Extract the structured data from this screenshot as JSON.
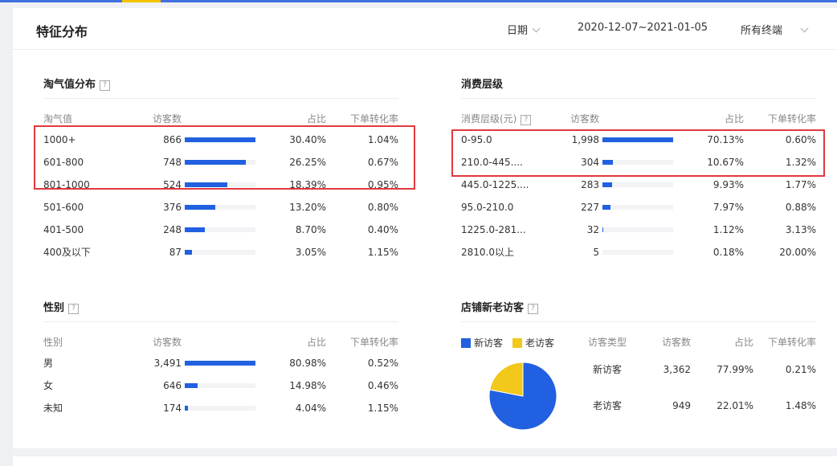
{
  "header": {
    "title": "特征分布",
    "date_filter": "日期",
    "date_range": "2020-12-07~2021-01-05",
    "terminal_filter": "所有终端"
  },
  "help_mark": "?",
  "taoqi": {
    "title": "淘气值分布",
    "columns": [
      "淘气值",
      "访客数",
      "占比",
      "下单转化率"
    ],
    "rows": [
      {
        "label": "1000+",
        "visitors": "866",
        "share": "30.40%",
        "conversion": "1.04%",
        "fill": 1.0
      },
      {
        "label": "601-800",
        "visitors": "748",
        "share": "26.25%",
        "conversion": "0.67%",
        "fill": 0.864
      },
      {
        "label": "801-1000",
        "visitors": "524",
        "share": "18.39%",
        "conversion": "0.95%",
        "fill": 0.605
      },
      {
        "label": "501-600",
        "visitors": "376",
        "share": "13.20%",
        "conversion": "0.80%",
        "fill": 0.434
      },
      {
        "label": "401-500",
        "visitors": "248",
        "share": "8.70%",
        "conversion": "0.40%",
        "fill": 0.286
      },
      {
        "label": "400及以下",
        "visitors": "87",
        "share": "3.05%",
        "conversion": "1.15%",
        "fill": 0.1
      }
    ]
  },
  "consumption": {
    "title": "消费层级",
    "columns": [
      "消费层级(元)",
      "访客数",
      "占比",
      "下单转化率"
    ],
    "rows": [
      {
        "label": "0-95.0",
        "visitors": "1,998",
        "share": "70.13%",
        "conversion": "0.60%",
        "fill": 1.0
      },
      {
        "label": "210.0-445....",
        "visitors": "304",
        "share": "10.67%",
        "conversion": "1.32%",
        "fill": 0.152
      },
      {
        "label": "445.0-1225....",
        "visitors": "283",
        "share": "9.93%",
        "conversion": "1.77%",
        "fill": 0.142
      },
      {
        "label": "95.0-210.0",
        "visitors": "227",
        "share": "7.97%",
        "conversion": "0.88%",
        "fill": 0.114
      },
      {
        "label": "1225.0-281...",
        "visitors": "32",
        "share": "1.12%",
        "conversion": "3.13%",
        "fill": 0.016
      },
      {
        "label": "2810.0以上",
        "visitors": "5",
        "share": "0.18%",
        "conversion": "20.00%",
        "fill": 0.0
      }
    ]
  },
  "gender": {
    "title": "性别",
    "columns": [
      "性别",
      "访客数",
      "占比",
      "下单转化率"
    ],
    "rows": [
      {
        "label": "男",
        "visitors": "3,491",
        "share": "80.98%",
        "conversion": "0.52%",
        "fill": 1.0
      },
      {
        "label": "女",
        "visitors": "646",
        "share": "14.98%",
        "conversion": "0.46%",
        "fill": 0.185
      },
      {
        "label": "未知",
        "visitors": "174",
        "share": "4.04%",
        "conversion": "1.15%",
        "fill": 0.05
      }
    ]
  },
  "visitors": {
    "title": "店铺新老访客",
    "legend": [
      {
        "label": "新访客",
        "color": "#2160e0"
      },
      {
        "label": "老访客",
        "color": "#f2c81b"
      }
    ],
    "columns": [
      "访客类型",
      "访客数",
      "占比",
      "下单转化率"
    ],
    "rows": [
      {
        "label": "新访客",
        "visitors": "3,362",
        "share": "77.99%",
        "conversion": "0.21%"
      },
      {
        "label": "老访客",
        "visitors": "949",
        "share": "22.01%",
        "conversion": "1.48%"
      }
    ]
  },
  "chart_data": {
    "type": "pie",
    "categories": [
      "新访客",
      "老访客"
    ],
    "values": [
      77.99,
      22.01
    ],
    "colors": [
      "#2160e0",
      "#f2c81b"
    ],
    "legend_position": "top-left"
  }
}
